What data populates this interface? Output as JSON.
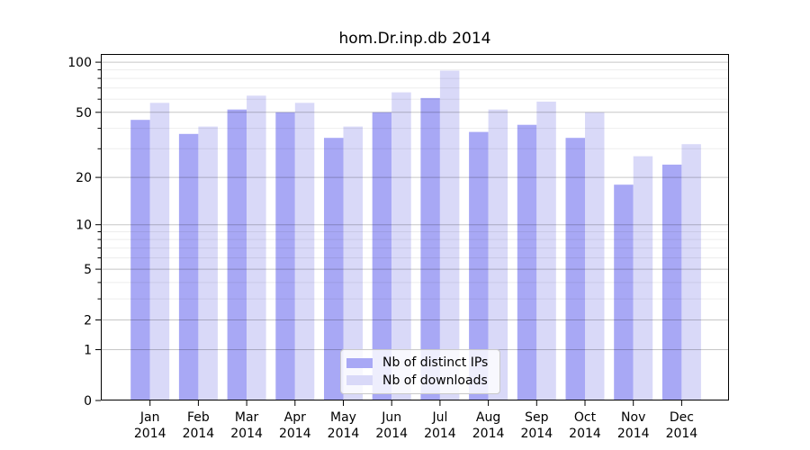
{
  "chart_data": {
    "type": "bar",
    "title": "hom.Dr.inp.db 2014",
    "xlabel": "",
    "ylabel": "",
    "categories": [
      "Jan",
      "Feb",
      "Mar",
      "Apr",
      "May",
      "Jun",
      "Jul",
      "Aug",
      "Sep",
      "Oct",
      "Nov",
      "Dec"
    ],
    "x_year_label": "2014",
    "series": [
      {
        "name": "Nb of distinct IPs",
        "color": "#a8a8f5",
        "values": [
          45,
          37,
          52,
          50,
          35,
          50,
          61,
          38,
          42,
          35,
          18,
          24
        ]
      },
      {
        "name": "Nb of downloads",
        "color": "#d9d9f8",
        "values": [
          57,
          41,
          63,
          57,
          41,
          66,
          89,
          52,
          58,
          50,
          27,
          32
        ]
      }
    ],
    "yscale": "log1p",
    "ylim": [
      0,
      112
    ],
    "yticks": [
      0,
      1,
      2,
      5,
      10,
      20,
      50,
      100
    ],
    "yticks_minor": [
      3,
      4,
      6,
      7,
      8,
      9,
      30,
      40,
      60,
      70,
      80,
      90
    ],
    "grid": "major+minor, drawn above bars",
    "legend_position": "lower center inside plot"
  }
}
